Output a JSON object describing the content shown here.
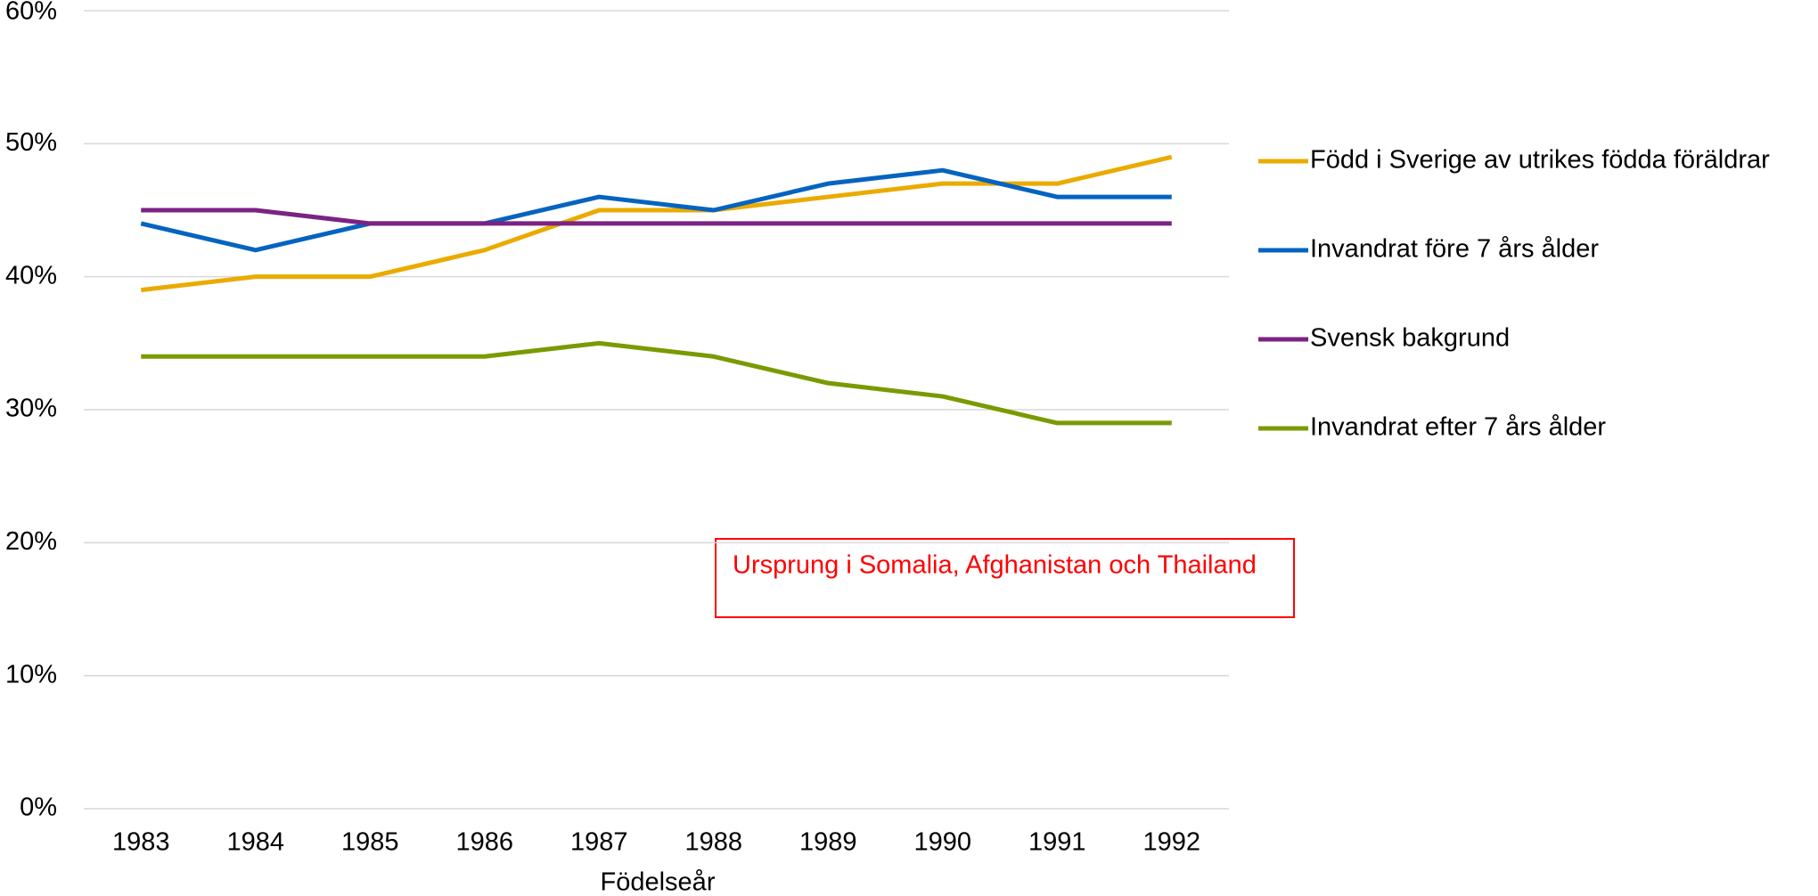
{
  "chart_data": {
    "type": "line",
    "x_label": "Födelseår",
    "annotation": "Ursprung i Somalia, Afghanistan och Thailand",
    "categories": [
      "1983",
      "1984",
      "1985",
      "1986",
      "1987",
      "1988",
      "1989",
      "1990",
      "1991",
      "1992"
    ],
    "series": [
      {
        "name": "Född i Sverige av utrikes födda föräldrar",
        "color": "#eaab00",
        "values": [
          39,
          40,
          40,
          42,
          45,
          45,
          46,
          47,
          47,
          49
        ]
      },
      {
        "name": "Invandrat före 7 års ålder",
        "color": "#0563c1",
        "values": [
          44,
          42,
          44,
          44,
          46,
          45,
          47,
          48,
          46,
          46
        ]
      },
      {
        "name": "Svensk bakgrund",
        "color": "#7b2383",
        "values": [
          45,
          45,
          44,
          44,
          44,
          44,
          44,
          44,
          44,
          44
        ]
      },
      {
        "name": "Invandrat efter 7 års ålder",
        "color": "#7a9a01",
        "values": [
          34,
          34,
          34,
          34,
          35,
          34,
          32,
          31,
          29,
          29
        ]
      }
    ],
    "ylim": [
      0,
      60
    ],
    "yticks": [
      {
        "value": 0,
        "label": "0%"
      },
      {
        "value": 10,
        "label": "10%"
      },
      {
        "value": 20,
        "label": "20%"
      },
      {
        "value": 30,
        "label": "30%"
      },
      {
        "value": 40,
        "label": "40%"
      },
      {
        "value": 50,
        "label": "50%"
      },
      {
        "value": 60,
        "label": "60%"
      }
    ],
    "grid": true,
    "legend": "right"
  }
}
